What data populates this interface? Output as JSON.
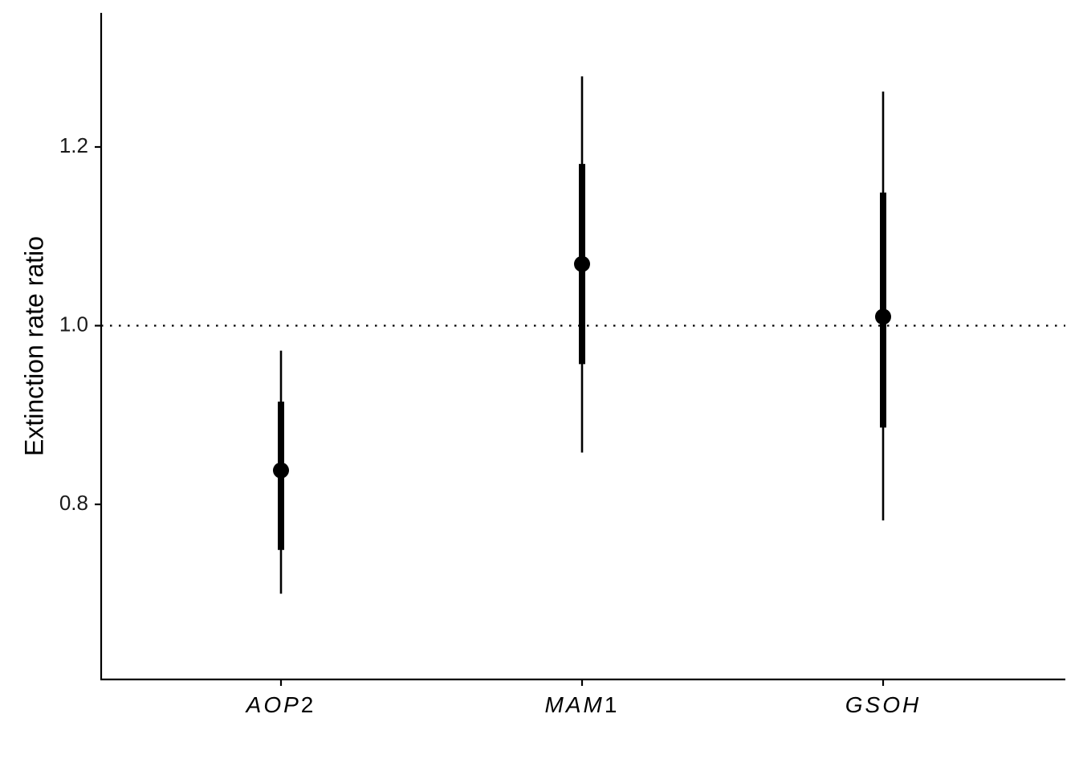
{
  "chart_data": {
    "type": "pointrange",
    "title": "",
    "xlabel": "",
    "ylabel": "Extinction rate ratio",
    "ylim": [
      0.675,
      1.31
    ],
    "yticks": [
      0.8,
      1.0,
      1.2
    ],
    "ytick_labels": [
      "0.8",
      "1.0",
      "1.2"
    ],
    "reference_line": {
      "y": 1.0,
      "style": "dotted"
    },
    "categories": [
      {
        "name": "AOP",
        "suffix": "2"
      },
      {
        "name": "MAM",
        "suffix": "1"
      },
      {
        "name": "GSOH",
        "suffix": ""
      }
    ],
    "points": [
      {
        "category": "AOP2",
        "estimate": 0.838,
        "inner_low": 0.749,
        "inner_high": 0.915,
        "outer_low": 0.7,
        "outer_high": 0.972
      },
      {
        "category": "MAM1",
        "estimate": 1.069,
        "inner_low": 0.957,
        "inner_high": 1.181,
        "outer_low": 0.858,
        "outer_high": 1.279
      },
      {
        "category": "GSOH",
        "estimate": 1.01,
        "inner_low": 0.886,
        "inner_high": 1.149,
        "outer_low": 0.782,
        "outer_high": 1.262
      }
    ],
    "grid": false,
    "legend": "none",
    "colors": {
      "marks": "#000000",
      "axis": "#000000"
    }
  }
}
